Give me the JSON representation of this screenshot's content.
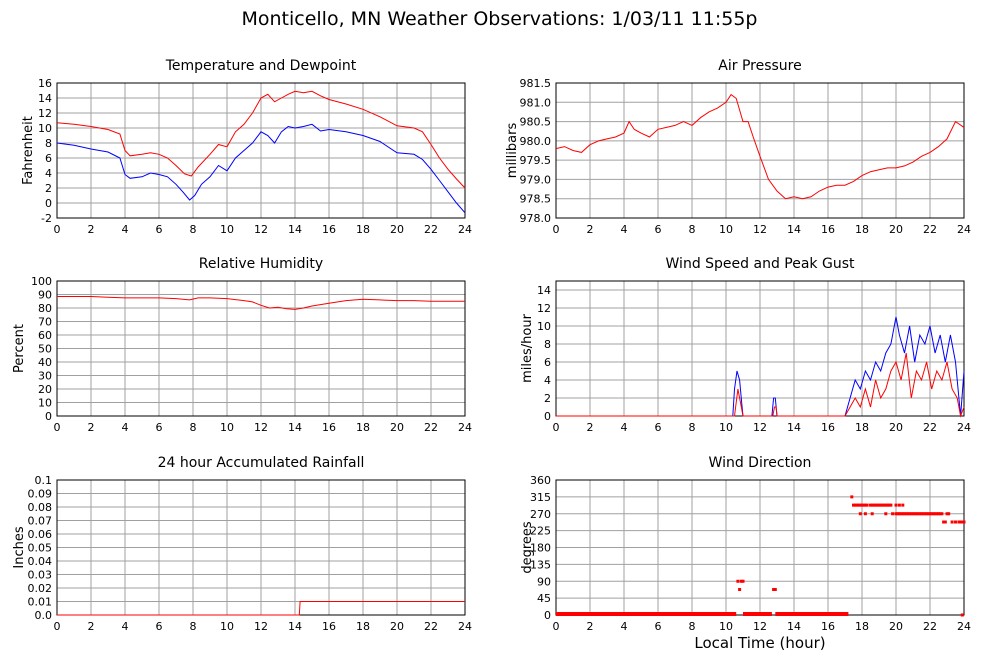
{
  "title": "Monticello, MN Weather Observations: 1/03/11 11:55p",
  "xlabel": "Local Time (hour)",
  "colors": {
    "red": "#ff0000",
    "blue": "#0000ff",
    "grid": "#a0a0a0"
  },
  "chart_data": [
    {
      "type": "line",
      "title": "Temperature and Dewpoint",
      "ylabel": "Fahrenheit",
      "xlim": [
        0,
        24
      ],
      "ylim": [
        -2,
        16
      ],
      "xticks": [
        0,
        2,
        4,
        6,
        8,
        10,
        12,
        14,
        16,
        18,
        20,
        22,
        24
      ],
      "yticks": [
        "-2",
        "0",
        "2",
        "4",
        "6",
        "8",
        "10",
        "12",
        "14",
        "16"
      ],
      "grid": true,
      "series": [
        {
          "color": "#ff0000",
          "x": [
            0,
            1,
            2,
            3,
            3.7,
            4,
            4.3,
            5,
            5.5,
            6,
            6.5,
            7,
            7.5,
            7.9,
            8.3,
            9,
            9.5,
            10,
            10.5,
            11,
            11.5,
            12,
            12.4,
            12.8,
            13.2,
            13.6,
            14,
            14.5,
            15,
            15.5,
            16,
            17,
            18,
            19,
            20,
            21,
            21.5,
            22,
            22.5,
            23,
            23.5,
            24
          ],
          "y": [
            10.7,
            10.5,
            10.2,
            9.8,
            9.2,
            7.0,
            6.3,
            6.5,
            6.7,
            6.5,
            6.0,
            5.0,
            3.9,
            3.6,
            4.8,
            6.5,
            7.8,
            7.5,
            9.5,
            10.5,
            12.0,
            14.0,
            14.5,
            13.5,
            14.0,
            14.5,
            14.9,
            14.7,
            14.9,
            14.3,
            13.8,
            13.2,
            12.5,
            11.5,
            10.3,
            10.0,
            9.5,
            7.8,
            6.0,
            4.5,
            3.2,
            2.0
          ]
        },
        {
          "color": "#0000ff",
          "x": [
            0,
            1,
            2,
            3,
            3.7,
            4,
            4.3,
            5,
            5.5,
            6,
            6.5,
            7,
            7.4,
            7.8,
            8.1,
            8.5,
            9,
            9.5,
            10,
            10.5,
            11,
            11.5,
            12,
            12.4,
            12.8,
            13.2,
            13.6,
            14,
            14.5,
            15,
            15.5,
            16,
            17,
            18,
            19,
            20,
            21,
            21.5,
            22,
            22.5,
            23,
            23.5,
            24
          ],
          "y": [
            8.0,
            7.7,
            7.2,
            6.8,
            6.0,
            3.8,
            3.3,
            3.5,
            4.0,
            3.8,
            3.5,
            2.5,
            1.5,
            0.4,
            1.0,
            2.5,
            3.5,
            5.0,
            4.3,
            6.0,
            7.0,
            8.0,
            9.5,
            9.0,
            8.0,
            9.5,
            10.2,
            10.0,
            10.2,
            10.5,
            9.6,
            9.8,
            9.5,
            9.0,
            8.2,
            6.7,
            6.5,
            5.8,
            4.5,
            3.0,
            1.5,
            0.0,
            -1.3
          ]
        }
      ]
    },
    {
      "type": "line",
      "title": "Air Pressure",
      "ylabel": "millibars",
      "xlim": [
        0,
        24
      ],
      "ylim": [
        978.0,
        981.5
      ],
      "xticks": [
        0,
        2,
        4,
        6,
        8,
        10,
        12,
        14,
        16,
        18,
        20,
        22,
        24
      ],
      "yticks": [
        "978.0",
        "978.5",
        "979.0",
        "979.5",
        "980.0",
        "980.5",
        "981.0",
        "981.5"
      ],
      "grid": true,
      "series": [
        {
          "color": "#ff0000",
          "x": [
            0,
            0.5,
            1,
            1.5,
            2,
            2.5,
            3,
            3.5,
            4,
            4.3,
            4.6,
            5,
            5.5,
            6,
            6.5,
            7,
            7.5,
            8,
            8.5,
            9,
            9.5,
            10,
            10.3,
            10.6,
            11,
            11.3,
            11.6,
            12,
            12.5,
            13,
            13.5,
            14,
            14.5,
            15,
            15.5,
            16,
            16.5,
            17,
            17.5,
            18,
            18.5,
            19,
            19.5,
            20,
            20.5,
            21,
            21.5,
            22,
            22.5,
            23,
            23.5,
            24
          ],
          "y": [
            979.8,
            979.85,
            979.75,
            979.7,
            979.9,
            980.0,
            980.05,
            980.1,
            980.2,
            980.5,
            980.3,
            980.2,
            980.1,
            980.3,
            980.35,
            980.4,
            980.5,
            980.4,
            980.6,
            980.75,
            980.85,
            981.0,
            981.2,
            981.1,
            980.5,
            980.5,
            980.1,
            979.6,
            979.0,
            978.7,
            978.5,
            978.55,
            978.5,
            978.55,
            978.7,
            978.8,
            978.85,
            978.85,
            978.95,
            979.1,
            979.2,
            979.25,
            979.3,
            979.3,
            979.35,
            979.45,
            979.6,
            979.7,
            979.85,
            980.05,
            980.5,
            980.35
          ]
        }
      ]
    },
    {
      "type": "line",
      "title": "Relative Humidity",
      "ylabel": "Percent",
      "xlim": [
        0,
        24
      ],
      "ylim": [
        0,
        100
      ],
      "xticks": [
        0,
        2,
        4,
        6,
        8,
        10,
        12,
        14,
        16,
        18,
        20,
        22,
        24
      ],
      "yticks": [
        "0",
        "10",
        "20",
        "30",
        "40",
        "50",
        "60",
        "70",
        "80",
        "90",
        "100"
      ],
      "grid": true,
      "series": [
        {
          "color": "#ff0000",
          "x": [
            0,
            1,
            2,
            3,
            4,
            5,
            6,
            7,
            7.8,
            8.3,
            9,
            10,
            11,
            11.5,
            12,
            12.5,
            13,
            13.5,
            14,
            14.5,
            15,
            16,
            17,
            18,
            19,
            20,
            21,
            22,
            23,
            24
          ],
          "y": [
            88.5,
            88.5,
            88.5,
            88,
            87.5,
            87.5,
            87.5,
            87,
            86,
            87.5,
            87.5,
            87,
            85.5,
            84.5,
            82,
            80,
            80.5,
            79.5,
            79,
            80,
            81.5,
            83.5,
            85.5,
            86.5,
            86,
            85.5,
            85.5,
            85,
            85,
            85
          ]
        }
      ]
    },
    {
      "type": "line",
      "title": "Wind Speed and Peak Gust",
      "ylabel": "miles/hour",
      "xlim": [
        0,
        24
      ],
      "ylim": [
        0,
        15
      ],
      "xticks": [
        0,
        2,
        4,
        6,
        8,
        10,
        12,
        14,
        16,
        18,
        20,
        22,
        24
      ],
      "yticks": [
        "0",
        "2",
        "4",
        "6",
        "8",
        "10",
        "12",
        "14"
      ],
      "grid": true,
      "series": [
        {
          "color": "#0000ff",
          "x": [
            0,
            10.4,
            10.5,
            10.65,
            10.8,
            10.95,
            11.0,
            12.7,
            12.8,
            12.9,
            13.0,
            17.0,
            17.3,
            17.6,
            17.9,
            18.2,
            18.5,
            18.8,
            19.1,
            19.4,
            19.7,
            20.0,
            20.2,
            20.5,
            20.8,
            21.1,
            21.4,
            21.7,
            22.0,
            22.3,
            22.6,
            22.9,
            23.2,
            23.5,
            23.8,
            24
          ],
          "y": [
            0,
            0,
            3,
            5,
            4,
            1,
            0,
            0,
            2,
            2,
            0,
            0,
            2,
            4,
            3,
            5,
            4,
            6,
            5,
            7,
            8,
            11,
            9,
            7,
            10,
            6,
            9,
            8,
            10,
            7,
            9,
            6,
            9,
            6,
            0,
            5
          ]
        },
        {
          "color": "#ff0000",
          "x": [
            0,
            10.5,
            10.7,
            10.9,
            11.0,
            12.75,
            12.85,
            12.95,
            13.0,
            17.0,
            17.3,
            17.6,
            17.9,
            18.2,
            18.5,
            18.8,
            19.1,
            19.4,
            19.7,
            20.0,
            20.3,
            20.6,
            20.9,
            21.2,
            21.5,
            21.8,
            22.1,
            22.4,
            22.7,
            23.0,
            23.3,
            23.6,
            23.8,
            24
          ],
          "y": [
            0,
            0,
            3,
            1,
            0,
            0,
            1,
            1,
            0,
            0,
            1,
            2,
            1,
            3,
            1,
            4,
            2,
            3,
            5,
            6,
            4,
            7,
            2,
            5,
            4,
            6,
            3,
            5,
            4,
            6,
            3,
            2,
            0,
            1
          ]
        }
      ]
    },
    {
      "type": "line",
      "title": "24 hour Accumulated Rainfall",
      "ylabel": "Inches",
      "xlim": [
        0,
        24
      ],
      "ylim": [
        0,
        0.1
      ],
      "xticks": [
        0,
        2,
        4,
        6,
        8,
        10,
        12,
        14,
        16,
        18,
        20,
        22,
        24
      ],
      "yticks": [
        "0.0",
        "0.01",
        "0.02",
        "0.03",
        "0.04",
        "0.05",
        "0.06",
        "0.07",
        "0.08",
        "0.09",
        "0.1"
      ],
      "grid": true,
      "series": [
        {
          "color": "#ff0000",
          "x": [
            0,
            14.25,
            14.3,
            24
          ],
          "y": [
            0,
            0,
            0.01,
            0.01
          ]
        }
      ]
    },
    {
      "type": "scatter",
      "title": "Wind Direction",
      "ylabel": "degrees",
      "xlim": [
        0,
        24
      ],
      "ylim": [
        0,
        360
      ],
      "xticks": [
        0,
        2,
        4,
        6,
        8,
        10,
        12,
        14,
        16,
        18,
        20,
        22,
        24
      ],
      "yticks": [
        "0",
        "45",
        "90",
        "135",
        "180",
        "225",
        "270",
        "315",
        "360"
      ],
      "grid": true,
      "series": [
        {
          "color": "#ff0000",
          "x": [
            10.7,
            10.8,
            10.9,
            11.0,
            12.8,
            12.9,
            17.4,
            17.5,
            17.6,
            17.7,
            17.8,
            17.9,
            18.0,
            18.1,
            18.2,
            18.3,
            18.5,
            18.6,
            18.7,
            18.8,
            18.9,
            19.0,
            19.1,
            19.2,
            19.3,
            19.4,
            19.5,
            19.6,
            19.7,
            17.9,
            18.2,
            18.6,
            19.4,
            19.8,
            20.0,
            20.1,
            20.2,
            20.3,
            20.4,
            20.5,
            20.6,
            20.7,
            20.8,
            20.9,
            21.0,
            21.1,
            21.2,
            21.3,
            21.4,
            21.5,
            21.6,
            21.7,
            21.8,
            21.9,
            22.0,
            22.1,
            22.2,
            22.3,
            22.4,
            22.5,
            22.6,
            22.7,
            22.8,
            22.9,
            23.0,
            23.1,
            23.3,
            23.5,
            23.7,
            23.8,
            23.9,
            24.0,
            20.0,
            20.2,
            20.4,
            23.9
          ],
          "y": [
            90,
            68,
            90,
            90,
            68,
            68,
            315,
            293,
            293,
            293,
            293,
            293,
            293,
            293,
            293,
            293,
            293,
            293,
            293,
            293,
            293,
            293,
            293,
            293,
            293,
            293,
            293,
            293,
            293,
            270,
            270,
            270,
            270,
            270,
            270,
            270,
            270,
            270,
            270,
            270,
            270,
            270,
            270,
            270,
            270,
            270,
            270,
            270,
            270,
            270,
            270,
            270,
            270,
            270,
            270,
            270,
            270,
            270,
            270,
            270,
            270,
            270,
            248,
            248,
            270,
            270,
            248,
            248,
            248,
            248,
            248,
            248,
            293,
            293,
            293,
            0
          ]
        },
        {
          "color": "#ff0000",
          "kind": "zero-band",
          "segments": [
            [
              0,
              10.6
            ],
            [
              11.0,
              12.7
            ],
            [
              12.9,
              17.2
            ]
          ]
        }
      ]
    }
  ]
}
